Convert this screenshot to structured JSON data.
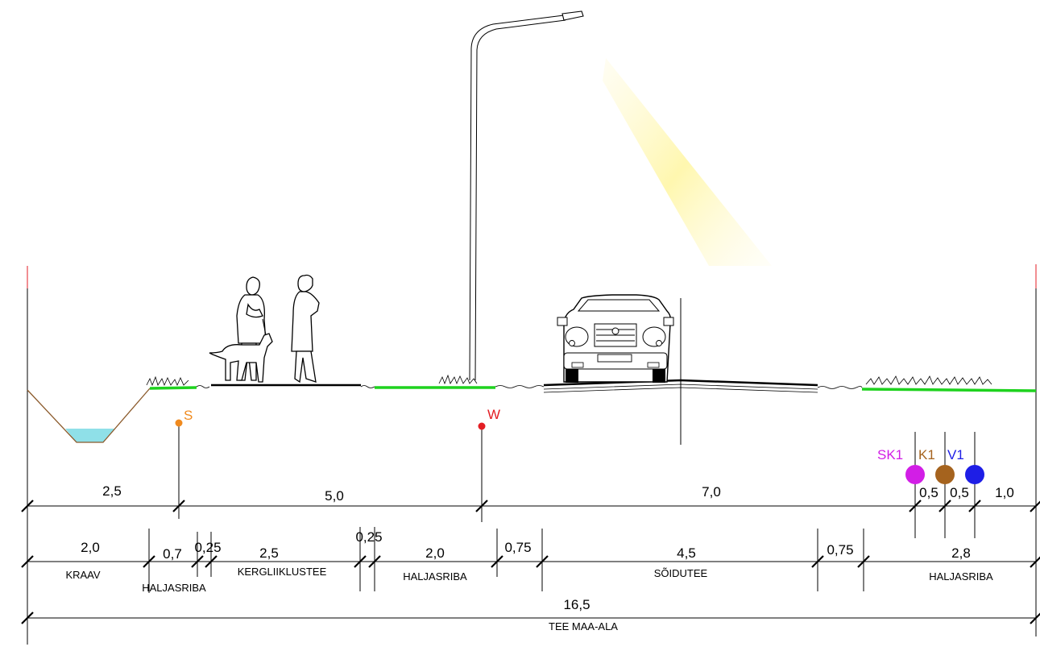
{
  "utilities": {
    "S": {
      "label": "S",
      "color": "#f08a1e"
    },
    "W": {
      "label": "W",
      "color": "#e31e24"
    },
    "SK1": {
      "label": "SK1",
      "color": "#d21ee6"
    },
    "K1": {
      "label": "K1",
      "color": "#a5631e"
    },
    "V1": {
      "label": "V1",
      "color": "#1e1ee6"
    }
  },
  "colors": {
    "grass": "#1ed21e",
    "water": "#8fe0e8",
    "ditch": "#8b5a2b",
    "lamp_light": "#fff7a0",
    "boundary": "#e31e24"
  },
  "dimensions_top": [
    "2,5",
    "5,0",
    "7,0",
    "0,5",
    "0,5",
    "1,0"
  ],
  "dimensions_middle": {
    "values": [
      "2,0",
      "0,7",
      "0,25",
      "2,5",
      "0,25",
      "2,0",
      "0,75",
      "4,5",
      "0,75",
      "2,8"
    ],
    "labels": [
      "KRAAV",
      "HALJASRIBA",
      "KERGLIIKLUSTEE",
      "HALJASRIBA",
      "SÕIDUTEE",
      "HALJASRIBA"
    ]
  },
  "dimensions_total": {
    "value": "16,5",
    "label": "TEE MAA-ALA"
  }
}
